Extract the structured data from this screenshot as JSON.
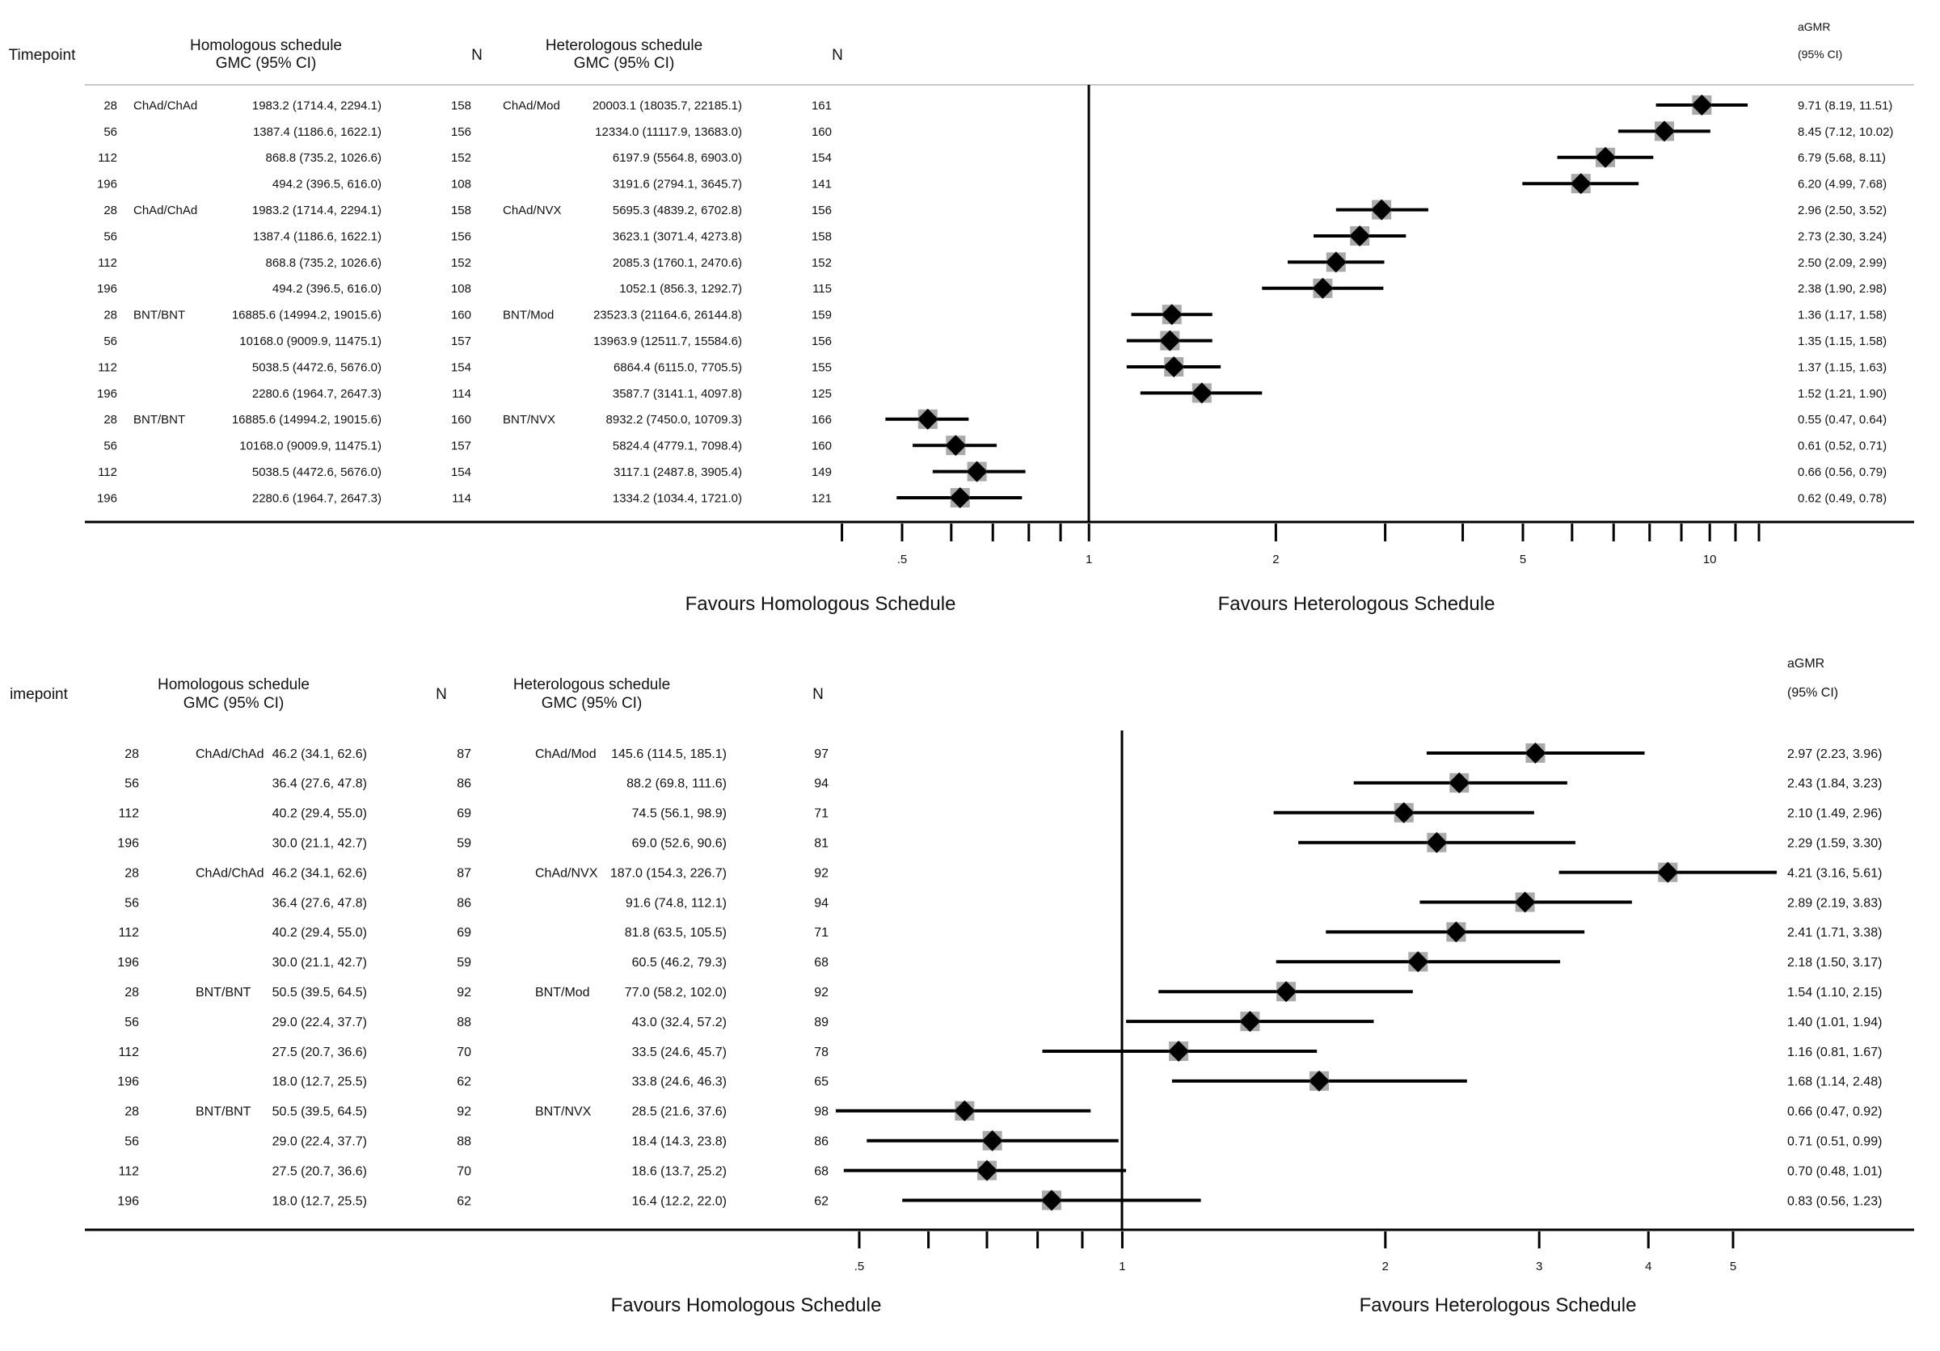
{
  "chart_data": [
    {
      "type": "forest",
      "scale": "log",
      "columns": {
        "timepoint": "Timepoint",
        "hom_title": "Homologous schedule",
        "hom_sub": "GMC (95% CI)",
        "n1": "N",
        "het_title": "Heterologous schedule",
        "het_sub": "GMC (95% CI)",
        "n2": "N",
        "agmr": "aGMR",
        "agmr_sub": "(95% CI)"
      },
      "favours_left": "Favours Homologous Schedule",
      "favours_right": "Favours Heterologous Schedule",
      "ref_line": 1,
      "xlim": [
        0.37,
        13
      ],
      "ticks": [
        {
          "v": 0.4,
          "label": ""
        },
        {
          "v": 0.5,
          "label": ".5"
        },
        {
          "v": 0.6,
          "label": ""
        },
        {
          "v": 0.7,
          "label": ""
        },
        {
          "v": 0.8,
          "label": ""
        },
        {
          "v": 0.9,
          "label": ""
        },
        {
          "v": 1,
          "label": "1"
        },
        {
          "v": 2,
          "label": "2"
        },
        {
          "v": 3,
          "label": ""
        },
        {
          "v": 4,
          "label": ""
        },
        {
          "v": 5,
          "label": "5"
        },
        {
          "v": 6,
          "label": ""
        },
        {
          "v": 7,
          "label": ""
        },
        {
          "v": 8,
          "label": ""
        },
        {
          "v": 9,
          "label": ""
        },
        {
          "v": 10,
          "label": "10"
        },
        {
          "v": 11,
          "label": ""
        },
        {
          "v": 12,
          "label": ""
        }
      ],
      "rows": [
        {
          "tp": "28",
          "hom_label": "ChAd/ChAd",
          "hom_gmc": "1983.2 (1714.4, 2294.1)",
          "n1": "158",
          "het_label": "ChAd/Mod",
          "het_gmc": "20003.1 (18035.7, 22185.1)",
          "n2": "161",
          "agmr_text": "9.71 (8.19, 11.51)",
          "est": 9.71,
          "lo": 8.19,
          "hi": 11.51
        },
        {
          "tp": "56",
          "hom_label": "",
          "hom_gmc": "1387.4 (1186.6, 1622.1)",
          "n1": "156",
          "het_label": "",
          "het_gmc": "12334.0 (11117.9, 13683.0)",
          "n2": "160",
          "agmr_text": "8.45 (7.12, 10.02)",
          "est": 8.45,
          "lo": 7.12,
          "hi": 10.02
        },
        {
          "tp": "112",
          "hom_label": "",
          "hom_gmc": "868.8 (735.2, 1026.6)",
          "n1": "152",
          "het_label": "",
          "het_gmc": "6197.9 (5564.8, 6903.0)",
          "n2": "154",
          "agmr_text": "6.79 (5.68, 8.11)",
          "est": 6.79,
          "lo": 5.68,
          "hi": 8.11
        },
        {
          "tp": "196",
          "hom_label": "",
          "hom_gmc": "494.2 (396.5, 616.0)",
          "n1": "108",
          "het_label": "",
          "het_gmc": "3191.6 (2794.1, 3645.7)",
          "n2": "141",
          "agmr_text": "6.20 (4.99, 7.68)",
          "est": 6.2,
          "lo": 4.99,
          "hi": 7.68
        },
        {
          "tp": "28",
          "hom_label": "ChAd/ChAd",
          "hom_gmc": "1983.2 (1714.4, 2294.1)",
          "n1": "158",
          "het_label": "ChAd/NVX",
          "het_gmc": "5695.3 (4839.2, 6702.8)",
          "n2": "156",
          "agmr_text": "2.96 (2.50, 3.52)",
          "est": 2.96,
          "lo": 2.5,
          "hi": 3.52
        },
        {
          "tp": "56",
          "hom_label": "",
          "hom_gmc": "1387.4 (1186.6, 1622.1)",
          "n1": "156",
          "het_label": "",
          "het_gmc": "3623.1 (3071.4, 4273.8)",
          "n2": "158",
          "agmr_text": "2.73 (2.30, 3.24)",
          "est": 2.73,
          "lo": 2.3,
          "hi": 3.24
        },
        {
          "tp": "112",
          "hom_label": "",
          "hom_gmc": "868.8 (735.2, 1026.6)",
          "n1": "152",
          "het_label": "",
          "het_gmc": "2085.3 (1760.1, 2470.6)",
          "n2": "152",
          "agmr_text": "2.50 (2.09, 2.99)",
          "est": 2.5,
          "lo": 2.09,
          "hi": 2.99
        },
        {
          "tp": "196",
          "hom_label": "",
          "hom_gmc": "494.2 (396.5, 616.0)",
          "n1": "108",
          "het_label": "",
          "het_gmc": "1052.1 (856.3, 1292.7)",
          "n2": "115",
          "agmr_text": "2.38 (1.90, 2.98)",
          "est": 2.38,
          "lo": 1.9,
          "hi": 2.98
        },
        {
          "tp": "28",
          "hom_label": "BNT/BNT",
          "hom_gmc": "16885.6 (14994.2, 19015.6)",
          "n1": "160",
          "het_label": "BNT/Mod",
          "het_gmc": "23523.3 (21164.6, 26144.8)",
          "n2": "159",
          "agmr_text": "1.36 (1.17, 1.58)",
          "est": 1.36,
          "lo": 1.17,
          "hi": 1.58
        },
        {
          "tp": "56",
          "hom_label": "",
          "hom_gmc": "10168.0 (9009.9, 11475.1)",
          "n1": "157",
          "het_label": "",
          "het_gmc": "13963.9 (12511.7, 15584.6)",
          "n2": "156",
          "agmr_text": "1.35 (1.15, 1.58)",
          "est": 1.35,
          "lo": 1.15,
          "hi": 1.58
        },
        {
          "tp": "112",
          "hom_label": "",
          "hom_gmc": "5038.5 (4472.6, 5676.0)",
          "n1": "154",
          "het_label": "",
          "het_gmc": "6864.4 (6115.0, 7705.5)",
          "n2": "155",
          "agmr_text": "1.37 (1.15, 1.63)",
          "est": 1.37,
          "lo": 1.15,
          "hi": 1.63
        },
        {
          "tp": "196",
          "hom_label": "",
          "hom_gmc": "2280.6 (1964.7, 2647.3)",
          "n1": "114",
          "het_label": "",
          "het_gmc": "3587.7 (3141.1, 4097.8)",
          "n2": "125",
          "agmr_text": "1.52 (1.21, 1.90)",
          "est": 1.52,
          "lo": 1.21,
          "hi": 1.9
        },
        {
          "tp": "28",
          "hom_label": "BNT/BNT",
          "hom_gmc": "16885.6 (14994.2, 19015.6)",
          "n1": "160",
          "het_label": "BNT/NVX",
          "het_gmc": "8932.2 (7450.0, 10709.3)",
          "n2": "166",
          "agmr_text": "0.55 (0.47, 0.64)",
          "est": 0.55,
          "lo": 0.47,
          "hi": 0.64
        },
        {
          "tp": "56",
          "hom_label": "",
          "hom_gmc": "10168.0 (9009.9, 11475.1)",
          "n1": "157",
          "het_label": "",
          "het_gmc": "5824.4 (4779.1, 7098.4)",
          "n2": "160",
          "agmr_text": "0.61 (0.52, 0.71)",
          "est": 0.61,
          "lo": 0.52,
          "hi": 0.71
        },
        {
          "tp": "112",
          "hom_label": "",
          "hom_gmc": "5038.5 (4472.6, 5676.0)",
          "n1": "154",
          "het_label": "",
          "het_gmc": "3117.1 (2487.8, 3905.4)",
          "n2": "149",
          "agmr_text": "0.66 (0.56, 0.79)",
          "est": 0.66,
          "lo": 0.56,
          "hi": 0.79
        },
        {
          "tp": "196",
          "hom_label": "",
          "hom_gmc": "2280.6 (1964.7, 2647.3)",
          "n1": "114",
          "het_label": "",
          "het_gmc": "1334.2 (1034.4, 1721.0)",
          "n2": "121",
          "agmr_text": "0.62 (0.49, 0.78)",
          "est": 0.62,
          "lo": 0.49,
          "hi": 0.78
        }
      ]
    },
    {
      "type": "forest",
      "scale": "log",
      "columns": {
        "timepoint": "imepoint",
        "hom_title": "Homologous schedule",
        "hom_sub": "GMC (95% CI)",
        "n1": "N",
        "het_title": "Heterologous schedule",
        "het_sub": "GMC (95% CI)",
        "n2": "N",
        "agmr": "aGMR",
        "agmr_sub": "(95% CI)"
      },
      "favours_left": "Favours Homologous Schedule",
      "favours_right": "Favours Heterologous Schedule",
      "ref_line": 1,
      "xlim": [
        0.45,
        6.2
      ],
      "ticks": [
        {
          "v": 0.5,
          "label": ".5"
        },
        {
          "v": 0.6,
          "label": ""
        },
        {
          "v": 0.7,
          "label": ""
        },
        {
          "v": 0.8,
          "label": ""
        },
        {
          "v": 0.9,
          "label": ""
        },
        {
          "v": 1,
          "label": "1"
        },
        {
          "v": 2,
          "label": "2"
        },
        {
          "v": 3,
          "label": "3"
        },
        {
          "v": 4,
          "label": "4"
        },
        {
          "v": 5,
          "label": "5"
        }
      ],
      "rows": [
        {
          "tp": "28",
          "hom_label": "ChAd/ChAd",
          "hom_gmc": "46.2 (34.1, 62.6)",
          "n1": "87",
          "het_label": "ChAd/Mod",
          "het_gmc": "145.6 (114.5, 185.1)",
          "n2": "97",
          "agmr_text": "2.97 (2.23, 3.96)",
          "est": 2.97,
          "lo": 2.23,
          "hi": 3.96
        },
        {
          "tp": "56",
          "hom_label": "",
          "hom_gmc": "36.4 (27.6, 47.8)",
          "n1": "86",
          "het_label": "",
          "het_gmc": "88.2 (69.8, 111.6)",
          "n2": "94",
          "agmr_text": "2.43 (1.84, 3.23)",
          "est": 2.43,
          "lo": 1.84,
          "hi": 3.23
        },
        {
          "tp": "112",
          "hom_label": "",
          "hom_gmc": "40.2 (29.4, 55.0)",
          "n1": "69",
          "het_label": "",
          "het_gmc": "74.5 (56.1, 98.9)",
          "n2": "71",
          "agmr_text": "2.10 (1.49, 2.96)",
          "est": 2.1,
          "lo": 1.49,
          "hi": 2.96
        },
        {
          "tp": "196",
          "hom_label": "",
          "hom_gmc": "30.0 (21.1, 42.7)",
          "n1": "59",
          "het_label": "",
          "het_gmc": "69.0 (52.6, 90.6)",
          "n2": "81",
          "agmr_text": "2.29 (1.59, 3.30)",
          "est": 2.29,
          "lo": 1.59,
          "hi": 3.3
        },
        {
          "tp": "28",
          "hom_label": "ChAd/ChAd",
          "hom_gmc": "46.2 (34.1, 62.6)",
          "n1": "87",
          "het_label": "ChAd/NVX",
          "het_gmc": "187.0 (154.3, 226.7)",
          "n2": "92",
          "agmr_text": "4.21 (3.16, 5.61)",
          "est": 4.21,
          "lo": 3.16,
          "hi": 5.61
        },
        {
          "tp": "56",
          "hom_label": "",
          "hom_gmc": "36.4 (27.6, 47.8)",
          "n1": "86",
          "het_label": "",
          "het_gmc": "91.6 (74.8, 112.1)",
          "n2": "94",
          "agmr_text": "2.89 (2.19, 3.83)",
          "est": 2.89,
          "lo": 2.19,
          "hi": 3.83
        },
        {
          "tp": "112",
          "hom_label": "",
          "hom_gmc": "40.2 (29.4, 55.0)",
          "n1": "69",
          "het_label": "",
          "het_gmc": "81.8 (63.5, 105.5)",
          "n2": "71",
          "agmr_text": "2.41 (1.71, 3.38)",
          "est": 2.41,
          "lo": 1.71,
          "hi": 3.38
        },
        {
          "tp": "196",
          "hom_label": "",
          "hom_gmc": "30.0 (21.1, 42.7)",
          "n1": "59",
          "het_label": "",
          "het_gmc": "60.5 (46.2, 79.3)",
          "n2": "68",
          "agmr_text": "2.18 (1.50, 3.17)",
          "est": 2.18,
          "lo": 1.5,
          "hi": 3.17
        },
        {
          "tp": "28",
          "hom_label": "BNT/BNT",
          "hom_gmc": "50.5 (39.5, 64.5)",
          "n1": "92",
          "het_label": "BNT/Mod",
          "het_gmc": "77.0 (58.2, 102.0)",
          "n2": "92",
          "agmr_text": "1.54 (1.10, 2.15)",
          "est": 1.54,
          "lo": 1.1,
          "hi": 2.15
        },
        {
          "tp": "56",
          "hom_label": "",
          "hom_gmc": "29.0 (22.4, 37.7)",
          "n1": "88",
          "het_label": "",
          "het_gmc": "43.0 (32.4, 57.2)",
          "n2": "89",
          "agmr_text": "1.40 (1.01, 1.94)",
          "est": 1.4,
          "lo": 1.01,
          "hi": 1.94
        },
        {
          "tp": "112",
          "hom_label": "",
          "hom_gmc": "27.5 (20.7, 36.6)",
          "n1": "70",
          "het_label": "",
          "het_gmc": "33.5 (24.6, 45.7)",
          "n2": "78",
          "agmr_text": "1.16 (0.81, 1.67)",
          "est": 1.16,
          "lo": 0.81,
          "hi": 1.67
        },
        {
          "tp": "196",
          "hom_label": "",
          "hom_gmc": "18.0 (12.7, 25.5)",
          "n1": "62",
          "het_label": "",
          "het_gmc": "33.8 (24.6, 46.3)",
          "n2": "65",
          "agmr_text": "1.68 (1.14, 2.48)",
          "est": 1.68,
          "lo": 1.14,
          "hi": 2.48
        },
        {
          "tp": "28",
          "hom_label": "BNT/BNT",
          "hom_gmc": "50.5 (39.5, 64.5)",
          "n1": "92",
          "het_label": "BNT/NVX",
          "het_gmc": "28.5 (21.6, 37.6)",
          "n2": "98",
          "agmr_text": "0.66 (0.47, 0.92)",
          "est": 0.66,
          "lo": 0.47,
          "hi": 0.92
        },
        {
          "tp": "56",
          "hom_label": "",
          "hom_gmc": "29.0 (22.4, 37.7)",
          "n1": "88",
          "het_label": "",
          "het_gmc": "18.4 (14.3, 23.8)",
          "n2": "86",
          "agmr_text": "0.71 (0.51, 0.99)",
          "est": 0.71,
          "lo": 0.51,
          "hi": 0.99
        },
        {
          "tp": "112",
          "hom_label": "",
          "hom_gmc": "27.5 (20.7, 36.6)",
          "n1": "70",
          "het_label": "",
          "het_gmc": "18.6 (13.7, 25.2)",
          "n2": "68",
          "agmr_text": "0.70 (0.48, 1.01)",
          "est": 0.7,
          "lo": 0.48,
          "hi": 1.01
        },
        {
          "tp": "196",
          "hom_label": "",
          "hom_gmc": "18.0 (12.7, 25.5)",
          "n1": "62",
          "het_label": "",
          "het_gmc": "16.4 (12.2, 22.0)",
          "n2": "62",
          "agmr_text": "0.83 (0.56, 1.23)",
          "est": 0.83,
          "lo": 0.56,
          "hi": 1.23
        }
      ]
    }
  ]
}
